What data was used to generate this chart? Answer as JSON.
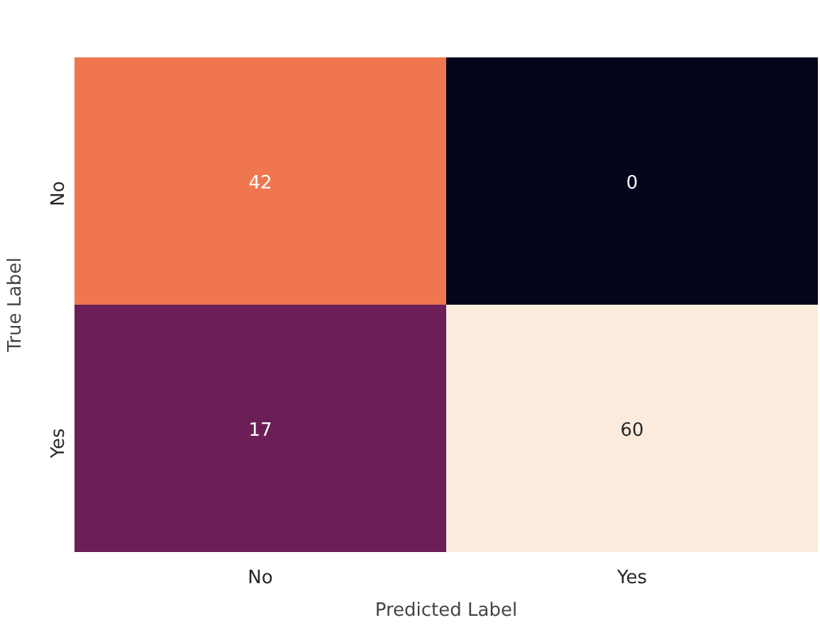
{
  "chart_data": {
    "type": "heatmap",
    "xlabel": "Predicted Label",
    "ylabel": "True Label",
    "categories": [
      "No",
      "Yes"
    ],
    "y_categories": [
      "No",
      "Yes"
    ],
    "cells": [
      [
        42,
        0
      ],
      [
        17,
        60
      ]
    ],
    "colors": [
      "#f07650",
      "#03051a",
      "#6b1f56",
      "#faebdd"
    ],
    "data_labels": true
  }
}
